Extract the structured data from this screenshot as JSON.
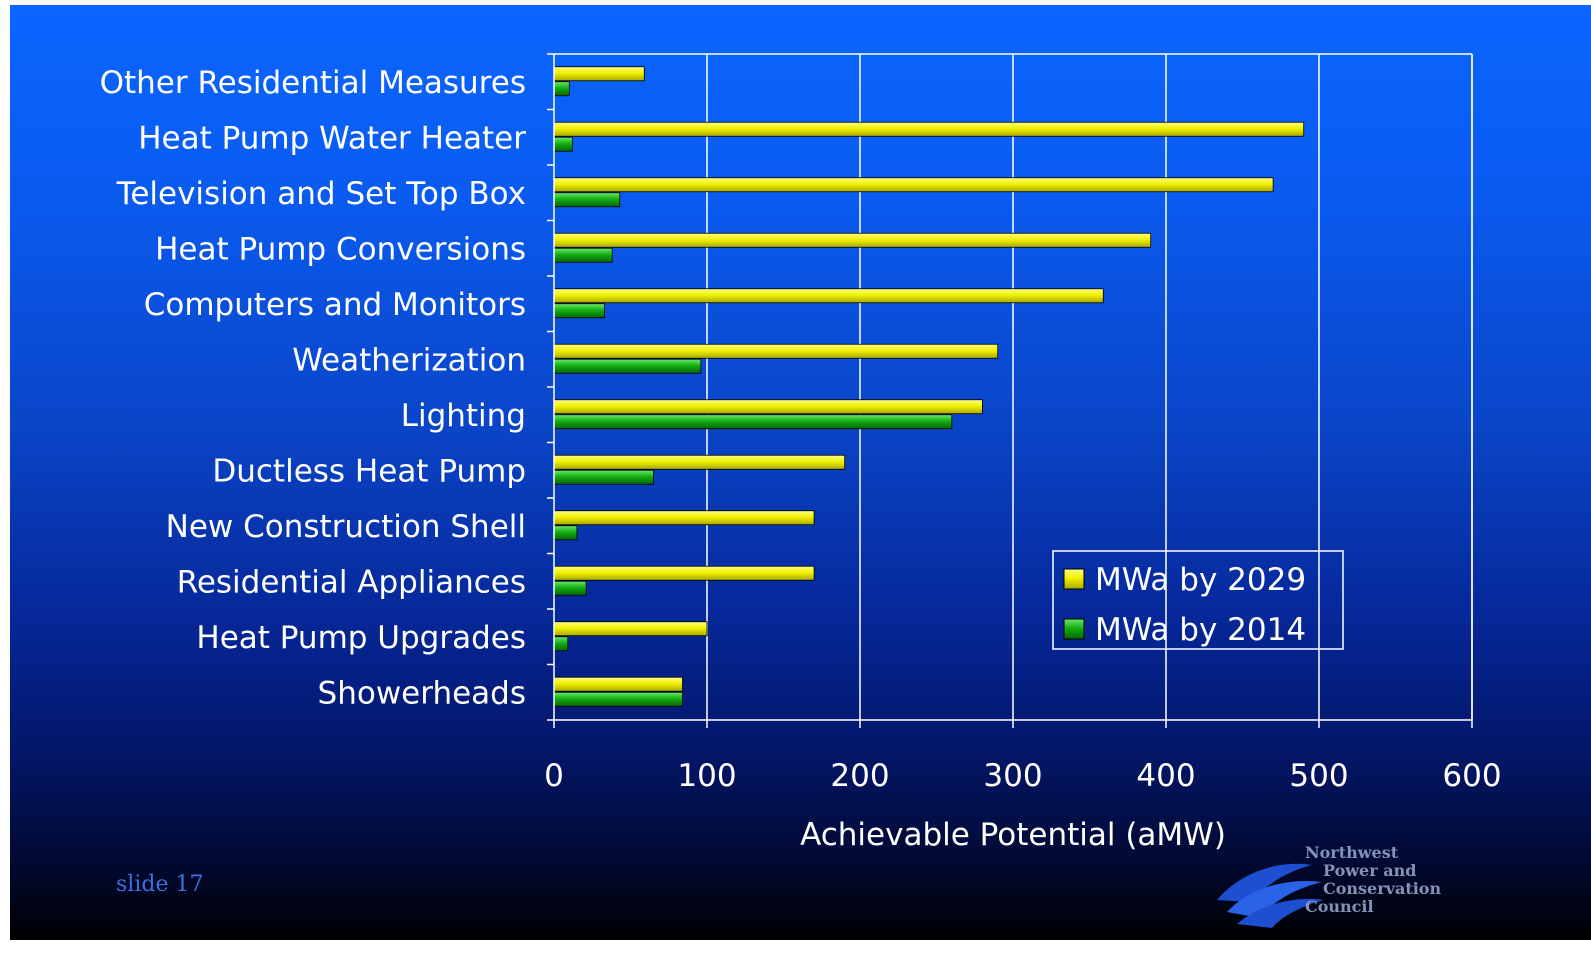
{
  "slide": {
    "slide_number": "slide 17",
    "logo": {
      "lines": [
        "Northwest",
        "Power and",
        "Conservation",
        "Council"
      ],
      "icon": "waves-logo-icon"
    }
  },
  "colors": {
    "series_2029": "#f2f200",
    "series_2014": "#12b012",
    "text": "#ffffff",
    "grid": "#ffffff"
  },
  "chart_data": {
    "type": "bar",
    "orientation": "horizontal",
    "categories": [
      "Other Residential Measures",
      "Heat Pump Water Heater",
      "Television and Set Top Box",
      "Heat Pump Conversions",
      "Computers and Monitors",
      "Weatherization",
      "Lighting",
      "Ductless Heat Pump",
      "New Construction Shell",
      "Residential Appliances",
      "Heat Pump Upgrades",
      "Showerheads"
    ],
    "series": [
      {
        "name": "MWa by 2029",
        "values": [
          59,
          490,
          470,
          390,
          359,
          290,
          280,
          190,
          170,
          170,
          100,
          84
        ]
      },
      {
        "name": "MWa by 2014",
        "values": [
          10,
          12,
          43,
          38,
          33,
          96,
          260,
          65,
          15,
          21,
          9,
          84
        ]
      }
    ],
    "xlabel": "Achievable Potential (aMW)",
    "ylabel": "",
    "xlim": [
      0,
      600
    ],
    "xticks": [
      0,
      100,
      200,
      300,
      400,
      500,
      600
    ],
    "grid": true,
    "legend_position": "bottom-right"
  }
}
